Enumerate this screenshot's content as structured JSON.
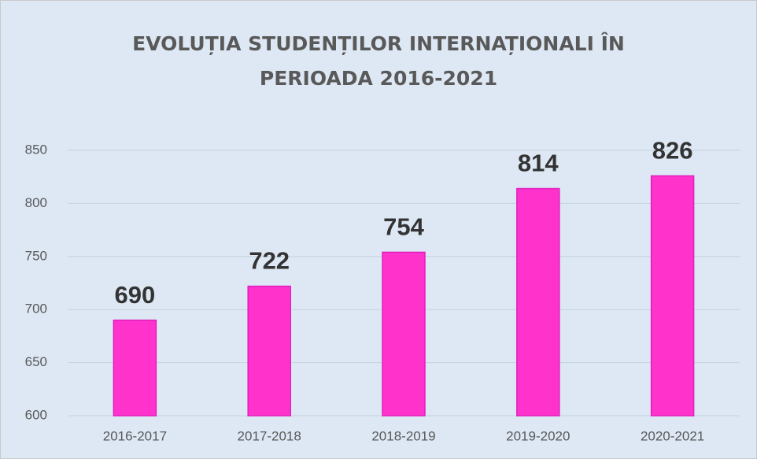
{
  "chart_data": {
    "type": "bar",
    "title": "EVOLUȚIA STUDENȚILOR INTERNAȚIONALI ÎN PERIOADA 2016-2021",
    "categories": [
      "2016-2017",
      "2017-2018",
      "2018-2019",
      "2019-2020",
      "2020-2021"
    ],
    "values": [
      690,
      722,
      754,
      814,
      826
    ],
    "color": "#ff33cc",
    "ylim": [
      600,
      850
    ],
    "yticks": [
      600,
      650,
      700,
      750,
      800,
      850
    ],
    "grid": true
  }
}
